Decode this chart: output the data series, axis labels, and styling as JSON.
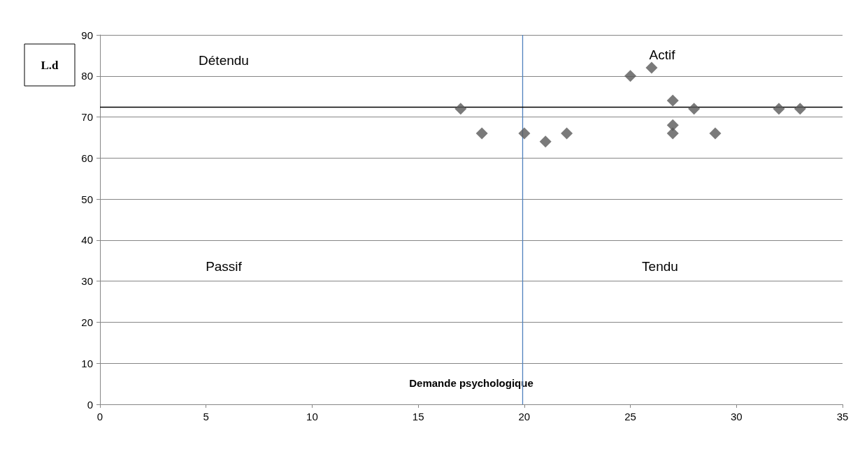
{
  "chart_data": {
    "type": "scatter",
    "xlabel": "Demande psychologique",
    "ylabel": "L.d",
    "x": [
      17,
      18,
      20,
      21,
      22,
      25,
      26,
      27,
      27,
      27,
      28,
      29,
      32,
      33
    ],
    "values": [
      72,
      66,
      66,
      64,
      66,
      80,
      82,
      74,
      68,
      66,
      72,
      66,
      72,
      72
    ],
    "color": "#595959",
    "marker": "diamond",
    "xlim": [
      0,
      35
    ],
    "xticks": [
      0,
      5,
      10,
      15,
      20,
      25,
      30,
      35
    ],
    "ylim": [
      0,
      90
    ],
    "yticks": [
      0,
      10,
      20,
      30,
      40,
      50,
      60,
      70,
      80,
      90
    ],
    "grid": "y",
    "ref_lines": [
      {
        "axis": "x",
        "value": 19.9,
        "color": "#4f81bd"
      },
      {
        "axis": "y",
        "value": 72.5,
        "color": "#000000"
      }
    ],
    "annotations": [
      "Détendu",
      "Actif",
      "Passif",
      "Tendu"
    ]
  }
}
